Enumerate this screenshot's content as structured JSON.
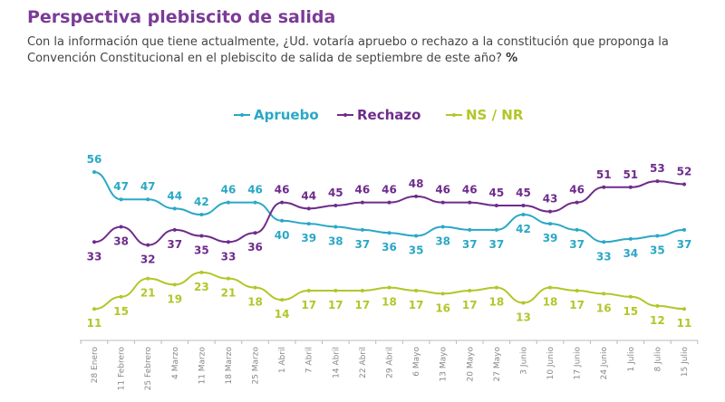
{
  "header": {
    "title": "Perspectiva plebiscito de salida",
    "subtitle": "Con la información que tiene actualmente, ¿Ud. votaría apruebo o rechazo a la constitución que proponga la Convención Constitucional en el plebiscito de salida de septiembre de este año?",
    "unit": "%"
  },
  "chart_data": {
    "type": "line",
    "title": "Perspectiva plebiscito de salida",
    "legend_position": "top",
    "grid": false,
    "ylim": [
      10,
      57
    ],
    "categories": [
      "28 Enero",
      "11 Febrero",
      "25 Febrero",
      "4 Marzo",
      "11 Marzo",
      "18 Marzo",
      "25 Marzo",
      "1 Abril",
      "7 Abril",
      "14 Abril",
      "22 Abril",
      "29 Abril",
      "6 Mayo",
      "13 Mayo",
      "20 Mayo",
      "27 Mayo",
      "3 Junio",
      "10 Junio",
      "17 Junio",
      "24 Junio",
      "1 Julio",
      "8 Julio",
      "15 Julio"
    ],
    "series": [
      {
        "name": "Apruebo",
        "color": "#2aa8c6",
        "values": [
          56,
          47,
          47,
          44,
          42,
          46,
          46,
          40,
          39,
          38,
          37,
          36,
          35,
          38,
          37,
          37,
          42,
          39,
          37,
          33,
          34,
          35,
          37
        ]
      },
      {
        "name": "Rechazo",
        "color": "#6e2c8c",
        "values": [
          33,
          38,
          32,
          37,
          35,
          33,
          36,
          46,
          44,
          45,
          46,
          46,
          48,
          46,
          46,
          45,
          45,
          43,
          46,
          51,
          51,
          53,
          52
        ]
      },
      {
        "name": "NS / NR",
        "color": "#b3c629",
        "values": [
          11,
          15,
          21,
          19,
          23,
          21,
          18,
          14,
          17,
          17,
          17,
          18,
          17,
          16,
          17,
          18,
          13,
          18,
          17,
          16,
          15,
          12,
          11
        ]
      }
    ]
  }
}
